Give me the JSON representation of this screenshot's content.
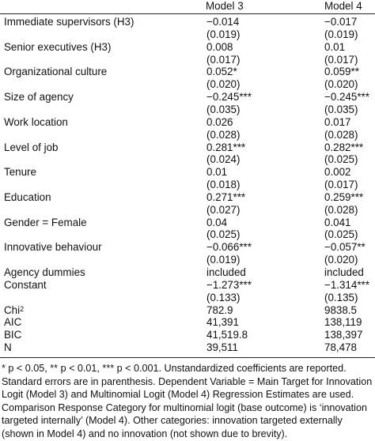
{
  "header": {
    "model3": "Model 3",
    "model4": "Model 4"
  },
  "rows": [
    {
      "label": "Immediate supervisors (H3)",
      "m3": "−0.014",
      "m4": "−0.017"
    },
    {
      "label": "",
      "m3": "(0.019)",
      "m4": "(0.019)"
    },
    {
      "label": "Senior executives (H3)",
      "m3": "0.008",
      "m4": "0.01"
    },
    {
      "label": "",
      "m3": "(0.017)",
      "m4": "(0.017)"
    },
    {
      "label": "Organizational culture",
      "m3": "0.052*",
      "m4": "0.059**"
    },
    {
      "label": "",
      "m3": "(0.020)",
      "m4": "(0.020)"
    },
    {
      "label": "Size of agency",
      "m3": "−0.245***",
      "m4": "−0.245***"
    },
    {
      "label": "",
      "m3": "(0.035)",
      "m4": "(0.035)"
    },
    {
      "label": "Work location",
      "m3": "0.026",
      "m4": "0.017"
    },
    {
      "label": "",
      "m3": "(0.028)",
      "m4": "(0.028)"
    },
    {
      "label": "Level of job",
      "m3": "0.281***",
      "m4": "0.282***"
    },
    {
      "label": "",
      "m3": "(0.024)",
      "m4": "(0.025)"
    },
    {
      "label": "Tenure",
      "m3": "0.01",
      "m4": "0.002"
    },
    {
      "label": "",
      "m3": "(0.018)",
      "m4": "(0.017)"
    },
    {
      "label": "Education",
      "m3": "0.271***",
      "m4": "0.259***"
    },
    {
      "label": "",
      "m3": "(0.027)",
      "m4": "(0.028)"
    },
    {
      "label": "Gender = Female",
      "m3": "0.04",
      "m4": "0.041"
    },
    {
      "label": "",
      "m3": "(0.025)",
      "m4": "(0.025)"
    },
    {
      "label": "Innovative behaviour",
      "m3": "−0.066***",
      "m4": "−0.057**"
    },
    {
      "label": "",
      "m3": "(0.019)",
      "m4": "(0.020)"
    },
    {
      "label": "Agency dummies",
      "m3": "included",
      "m4": "included"
    },
    {
      "label": "Constant",
      "m3": "−1.273***",
      "m4": "−1.314***"
    },
    {
      "label": "",
      "m3": "(0.133)",
      "m4": "(0.135)"
    },
    {
      "label": "Chi",
      "label_sup": "2",
      "m3": "782.9",
      "m4": "9838.5"
    },
    {
      "label": "AIC",
      "m3": "41,391",
      "m4": "138,119"
    },
    {
      "label": "BIC",
      "m3": "41,519.8",
      "m4": "138,397"
    },
    {
      "label": "N",
      "m3": "39,511",
      "m4": "78,478"
    }
  ],
  "note_lines": [
    "* p < 0.05, ** p < 0.01, *** p < 0.001. Unstandardized coefficients are reported.",
    "Standard errors are in parenthesis. Dependent Variable = Main Target for Innovation",
    "Logit (Model 3) and Multinomial Logit (Model 4) Regression Estimates are used.",
    "Comparison Response Category for multinomial logit (base outcome) is ‘innovation",
    "targeted internally’ (Model 4). Other categories: innovation targeted externally",
    "(shown in Model 4) and no innovation (not shown due to brevity)."
  ]
}
